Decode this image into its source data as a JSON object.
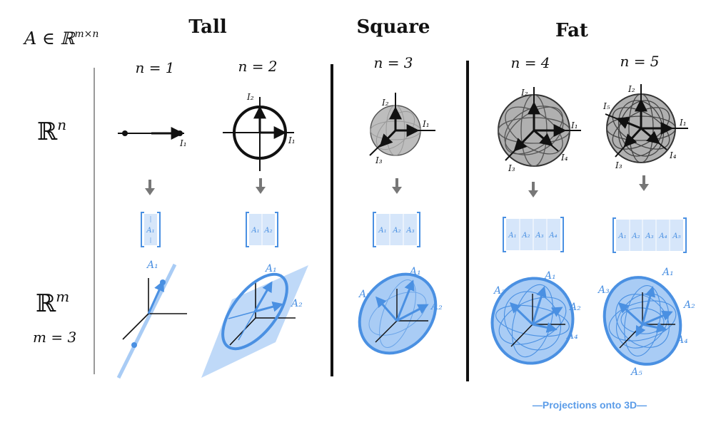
{
  "matrix_label": "A ∈ ℝ",
  "matrix_sup": "m×n",
  "sections": {
    "tall": "Tall",
    "square": "Square",
    "fat": "Fat"
  },
  "columns": [
    {
      "n_label": "n = 1",
      "domain_axes": [
        "I₁"
      ],
      "matrix_cols": [
        "A₁"
      ],
      "image_labels": [
        "A₁"
      ]
    },
    {
      "n_label": "n = 2",
      "domain_axes": [
        "I₁",
        "I₂"
      ],
      "matrix_cols": [
        "A₁",
        "A₂"
      ],
      "image_labels": [
        "A₁",
        "A₂"
      ]
    },
    {
      "n_label": "n = 3",
      "domain_axes": [
        "I₁",
        "I₂",
        "I₃"
      ],
      "matrix_cols": [
        "A₁",
        "A₂",
        "A₃"
      ],
      "image_labels": [
        "A₁",
        "A₂",
        "A₃"
      ]
    },
    {
      "n_label": "n = 4",
      "domain_axes": [
        "I₁",
        "I₂",
        "I₃",
        "I₄"
      ],
      "matrix_cols": [
        "A₁",
        "A₂",
        "A₃",
        "A₄"
      ],
      "image_labels": [
        "A₁",
        "A₂",
        "A₃",
        "A₄"
      ]
    },
    {
      "n_label": "n = 5",
      "domain_axes": [
        "I₁",
        "I₂",
        "I₃",
        "I₄",
        "I₅"
      ],
      "matrix_cols": [
        "A₁",
        "A₂",
        "A₃",
        "A₄",
        "A₅"
      ],
      "image_labels": [
        "A₁",
        "A₂",
        "A₃",
        "A₄",
        "A₅"
      ]
    }
  ],
  "rows": {
    "domain": "ℝ",
    "domain_sup": "n",
    "codomain": "ℝ",
    "codomain_sup": "m",
    "m_value": "m = 3"
  },
  "caption": "—Projections onto 3D—",
  "colors": {
    "ink": "#111111",
    "blue": "#4a90e2",
    "light_blue": "#a9ccf5",
    "gray_fill": "#b5b5b5",
    "rule": "#9a9a9a"
  }
}
